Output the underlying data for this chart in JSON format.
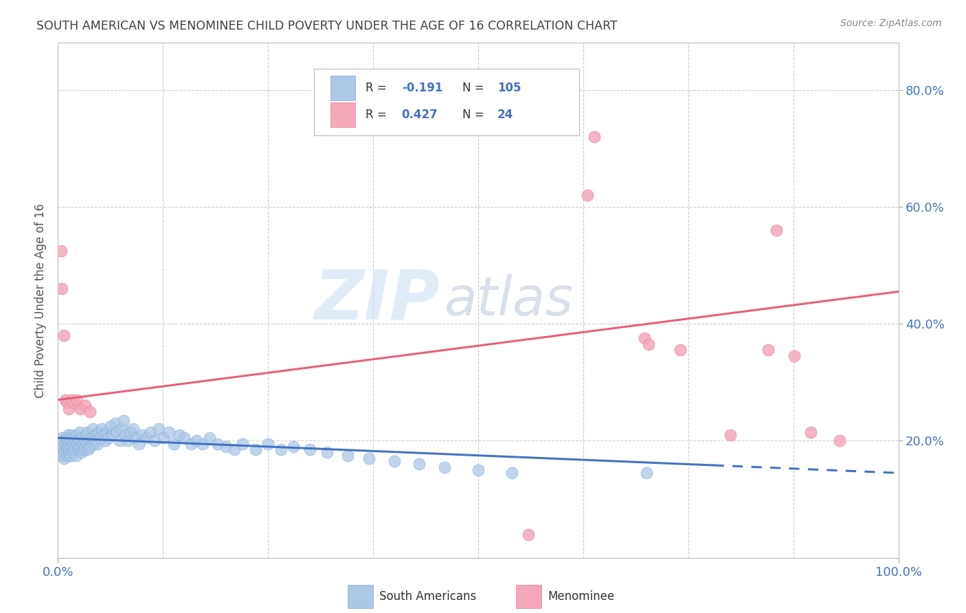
{
  "title": "SOUTH AMERICAN VS MENOMINEE CHILD POVERTY UNDER THE AGE OF 16 CORRELATION CHART",
  "source": "Source: ZipAtlas.com",
  "ylabel": "Child Poverty Under the Age of 16",
  "xlim": [
    0.0,
    1.0
  ],
  "ylim": [
    0.0,
    0.88
  ],
  "ytick_positions": [
    0.0,
    0.2,
    0.4,
    0.6,
    0.8
  ],
  "ytick_labels_right": [
    "",
    "20.0%",
    "40.0%",
    "60.0%",
    "80.0%"
  ],
  "xtick_left_label": "0.0%",
  "xtick_right_label": "100.0%",
  "sa_color": "#aec6e8",
  "sa_edge_color": "#7badd4",
  "men_color": "#f4a7b9",
  "men_edge_color": "#e8829a",
  "trend_blue_color": "#4472c4",
  "trend_pink_color": "#e8607a",
  "legend_sa_R": "-0.191",
  "legend_sa_N": "105",
  "legend_men_R": "0.427",
  "legend_men_N": "24",
  "grid_color": "#cccccc",
  "axis_label_color": "#4472c4",
  "title_color": "#404040",
  "source_color": "#888888",
  "watermark_zip": "ZIP",
  "watermark_atlas": "atlas",
  "watermark_zip_color": "#c8dff5",
  "watermark_atlas_color": "#aabbd4",
  "background_color": "#ffffff",
  "trend_blue_y0": 0.205,
  "trend_blue_y1": 0.145,
  "trend_pink_y0": 0.27,
  "trend_pink_y1": 0.455,
  "trend_blue_solid_xend": 0.78,
  "bottom_legend_sa": "South Americans",
  "bottom_legend_men": "Menominee",
  "sa_x": [
    0.003,
    0.004,
    0.005,
    0.005,
    0.006,
    0.007,
    0.007,
    0.008,
    0.009,
    0.01,
    0.01,
    0.011,
    0.011,
    0.012,
    0.012,
    0.013,
    0.013,
    0.014,
    0.014,
    0.015,
    0.015,
    0.016,
    0.016,
    0.017,
    0.018,
    0.018,
    0.019,
    0.02,
    0.021,
    0.022,
    0.022,
    0.023,
    0.024,
    0.025,
    0.026,
    0.027,
    0.028,
    0.029,
    0.03,
    0.031,
    0.032,
    0.033,
    0.034,
    0.035,
    0.036,
    0.037,
    0.038,
    0.04,
    0.041,
    0.042,
    0.044,
    0.045,
    0.047,
    0.048,
    0.05,
    0.052,
    0.054,
    0.056,
    0.058,
    0.06,
    0.063,
    0.065,
    0.068,
    0.07,
    0.073,
    0.076,
    0.078,
    0.08,
    0.083,
    0.086,
    0.09,
    0.093,
    0.096,
    0.1,
    0.105,
    0.11,
    0.115,
    0.12,
    0.126,
    0.132,
    0.138,
    0.144,
    0.15,
    0.158,
    0.165,
    0.172,
    0.18,
    0.19,
    0.2,
    0.21,
    0.22,
    0.235,
    0.25,
    0.265,
    0.28,
    0.3,
    0.32,
    0.345,
    0.37,
    0.4,
    0.43,
    0.46,
    0.5,
    0.54,
    0.7
  ],
  "sa_y": [
    0.195,
    0.19,
    0.175,
    0.205,
    0.185,
    0.17,
    0.2,
    0.18,
    0.195,
    0.185,
    0.205,
    0.175,
    0.2,
    0.19,
    0.21,
    0.18,
    0.195,
    0.185,
    0.2,
    0.175,
    0.21,
    0.185,
    0.2,
    0.19,
    0.18,
    0.205,
    0.195,
    0.185,
    0.2,
    0.175,
    0.21,
    0.195,
    0.185,
    0.2,
    0.215,
    0.19,
    0.18,
    0.205,
    0.195,
    0.185,
    0.2,
    0.21,
    0.195,
    0.215,
    0.185,
    0.2,
    0.19,
    0.205,
    0.22,
    0.195,
    0.21,
    0.2,
    0.195,
    0.215,
    0.205,
    0.22,
    0.21,
    0.2,
    0.215,
    0.205,
    0.225,
    0.21,
    0.23,
    0.215,
    0.2,
    0.22,
    0.235,
    0.21,
    0.2,
    0.215,
    0.22,
    0.205,
    0.195,
    0.21,
    0.205,
    0.215,
    0.2,
    0.22,
    0.205,
    0.215,
    0.195,
    0.21,
    0.205,
    0.195,
    0.2,
    0.195,
    0.205,
    0.195,
    0.19,
    0.185,
    0.195,
    0.185,
    0.195,
    0.185,
    0.19,
    0.185,
    0.18,
    0.175,
    0.17,
    0.165,
    0.16,
    0.155,
    0.15,
    0.145,
    0.145
  ],
  "men_x": [
    0.004,
    0.005,
    0.007,
    0.009,
    0.011,
    0.013,
    0.016,
    0.019,
    0.023,
    0.027,
    0.032,
    0.038,
    0.56,
    0.63,
    0.638,
    0.698,
    0.703,
    0.74,
    0.8,
    0.845,
    0.855,
    0.876,
    0.896,
    0.93
  ],
  "men_y": [
    0.525,
    0.46,
    0.38,
    0.27,
    0.265,
    0.255,
    0.27,
    0.265,
    0.27,
    0.255,
    0.26,
    0.25,
    0.04,
    0.62,
    0.72,
    0.375,
    0.365,
    0.355,
    0.21,
    0.355,
    0.56,
    0.345,
    0.215,
    0.2
  ]
}
